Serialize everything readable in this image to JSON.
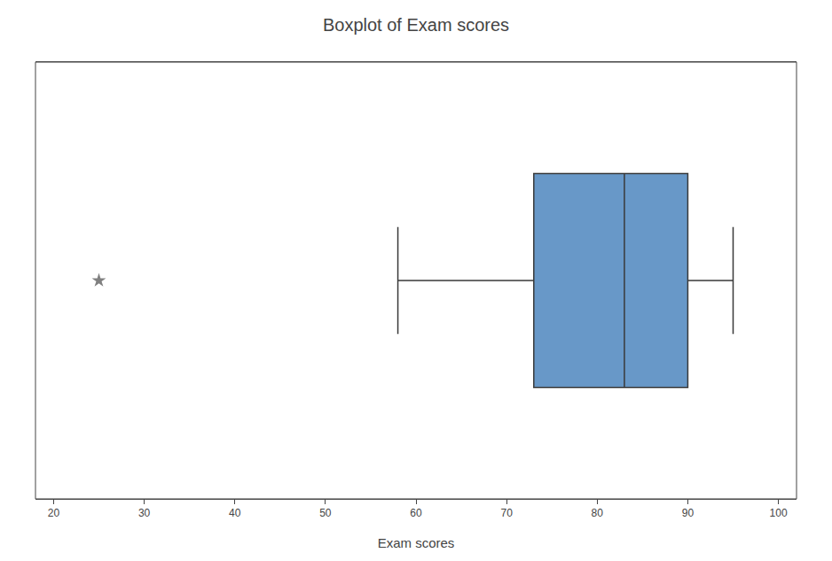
{
  "chart_data": {
    "type": "box",
    "title": "Boxplot of Exam scores",
    "xlabel": "Exam scores",
    "whisker_low": 58,
    "q1": 73,
    "median": 83,
    "q3": 90,
    "whisker_high": 95,
    "outliers": [
      25
    ],
    "color": "#6898C8",
    "marker": "star",
    "xlim": [
      18,
      102
    ],
    "xticks": [
      20,
      30,
      40,
      50,
      60,
      70,
      80,
      90,
      100
    ],
    "grid": false,
    "tick_labels": "x"
  }
}
